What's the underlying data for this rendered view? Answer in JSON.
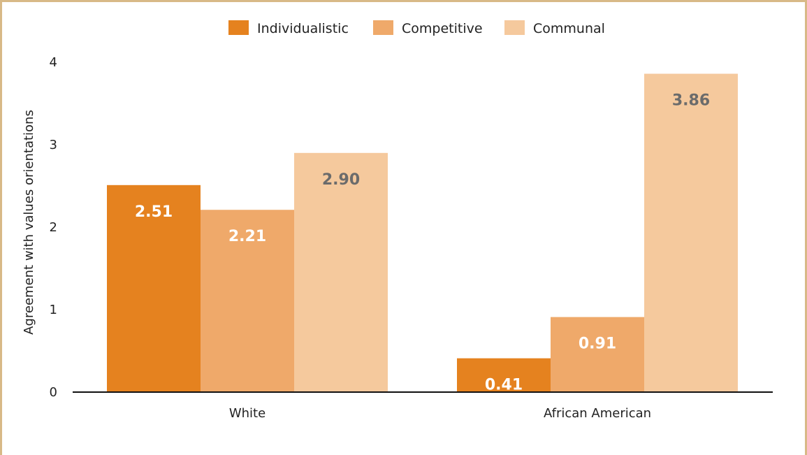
{
  "chart_data": {
    "type": "bar",
    "title": "",
    "xlabel": "",
    "ylabel": "Agreement with values orientations",
    "categories": [
      "White",
      "African American"
    ],
    "series": [
      {
        "name": "Individualistic",
        "values": [
          2.51,
          0.41
        ],
        "labels": [
          "2.51",
          "0.41"
        ],
        "color": "#e5821f",
        "label_color": "#ffffff"
      },
      {
        "name": "Competitive",
        "values": [
          2.21,
          0.91
        ],
        "labels": [
          "2.21",
          "0.91"
        ],
        "color": "#efa96a",
        "label_color": "#ffffff"
      },
      {
        "name": "Communal",
        "values": [
          2.9,
          3.86
        ],
        "labels": [
          "2.90",
          "3.86"
        ],
        "color": "#f5c99d",
        "label_color": "#6b6b6b"
      }
    ],
    "ylim": [
      0,
      4
    ],
    "yticks": [
      "0",
      "1",
      "2",
      "3",
      "4"
    ],
    "grid": false,
    "legend_position": "top-center"
  }
}
